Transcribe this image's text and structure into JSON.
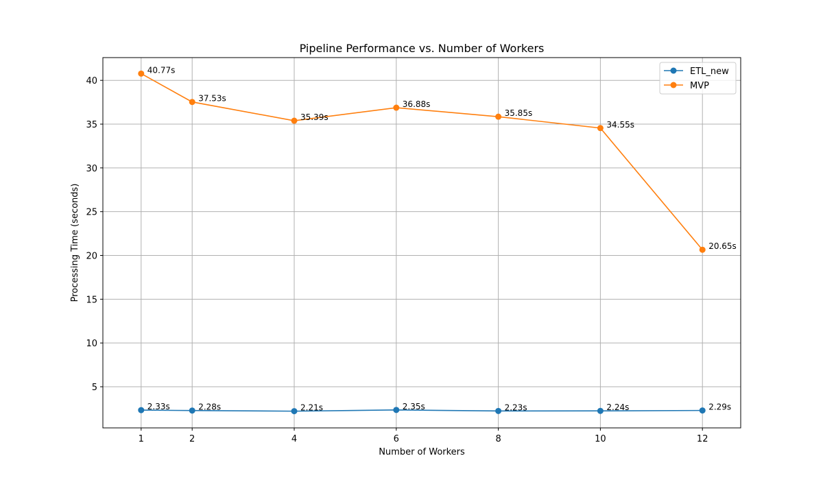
{
  "chart_data": {
    "type": "line",
    "title": "Pipeline Performance vs. Number of Workers",
    "xlabel": "Number of Workers",
    "ylabel": "Processing Time (seconds)",
    "x": [
      1,
      2,
      4,
      6,
      8,
      10,
      12
    ],
    "xticks": [
      "1",
      "2",
      "4",
      "6",
      "8",
      "10",
      "12"
    ],
    "yticks": [
      "5",
      "10",
      "15",
      "20",
      "25",
      "30",
      "35",
      "40"
    ],
    "xlim": [
      0.25,
      12.75
    ],
    "ylim": [
      0.3,
      42.6
    ],
    "grid": true,
    "legend_position": "top-right",
    "series": [
      {
        "name": "ETL_new",
        "color": "#1f77b4",
        "values": [
          2.33,
          2.28,
          2.21,
          2.35,
          2.23,
          2.24,
          2.29
        ],
        "labels": [
          "2.33s",
          "2.28s",
          "2.21s",
          "2.35s",
          "2.23s",
          "2.24s",
          "2.29s"
        ]
      },
      {
        "name": "MVP",
        "color": "#ff7f0e",
        "values": [
          40.77,
          37.53,
          35.39,
          36.88,
          35.85,
          34.55,
          20.65
        ],
        "labels": [
          "40.77s",
          "37.53s",
          "35.39s",
          "36.88s",
          "35.85s",
          "34.55s",
          "20.65s"
        ]
      }
    ]
  }
}
